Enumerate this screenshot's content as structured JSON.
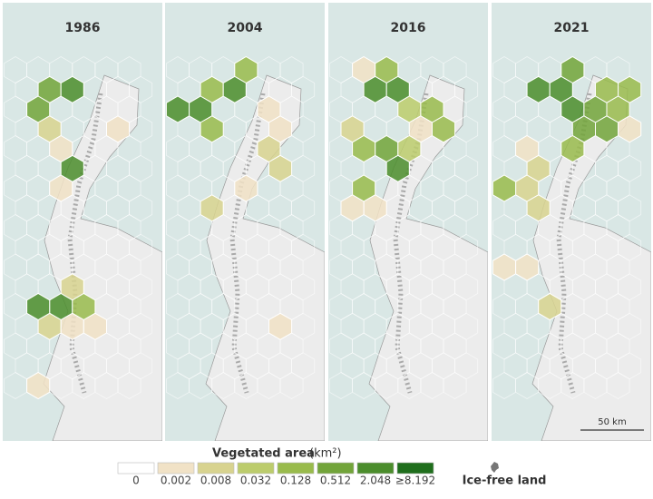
{
  "panels": [
    {
      "title": "1986"
    },
    {
      "title": "2004"
    },
    {
      "title": "2016"
    },
    {
      "title": "2021"
    }
  ],
  "scale_bar": "50 km",
  "legend": {
    "title": "Vegetated area",
    "unit": "(km²)",
    "items": [
      {
        "label": "0",
        "color": "#ffffff"
      },
      {
        "label": "0.002",
        "color": "#f1e2c6"
      },
      {
        "label": "0.008",
        "color": "#d8d38f"
      },
      {
        "label": "0.032",
        "color": "#bccc6c"
      },
      {
        "label": "0.128",
        "color": "#99bb4c"
      },
      {
        "label": "0.512",
        "color": "#72a43a"
      },
      {
        "label": "2.048",
        "color": "#4b8d2c"
      },
      {
        "label": "≥8.192",
        "color": "#1f6e1c"
      }
    ],
    "ice_free": "Ice-free land"
  }
}
